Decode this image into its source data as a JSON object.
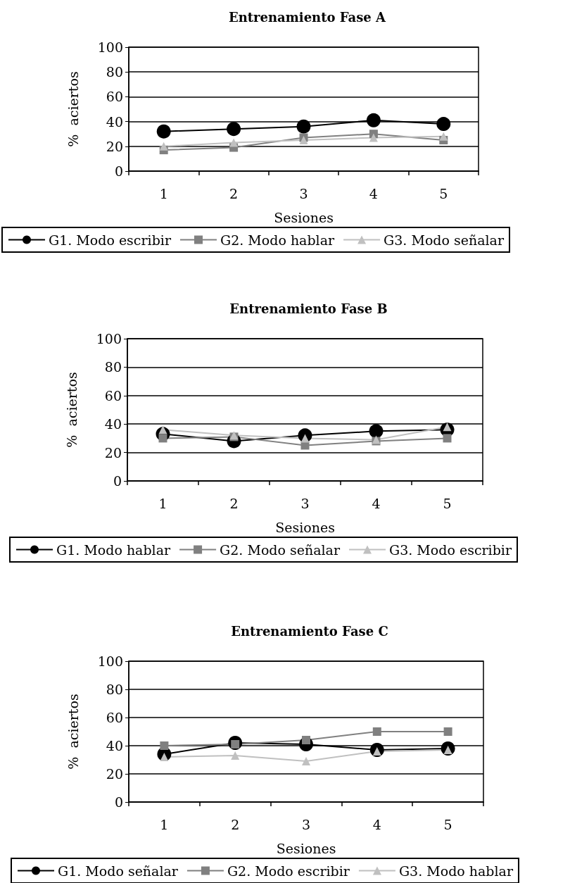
{
  "chart_data": [
    {
      "type": "line",
      "title": "Entrenamiento Fase A",
      "xlabel": "Sesiones",
      "ylabel": "%  aciertos",
      "categories": [
        "1",
        "2",
        "3",
        "4",
        "5"
      ],
      "ylim": [
        0,
        100
      ],
      "yticks": [
        0,
        20,
        40,
        60,
        80,
        100
      ],
      "grid": "y",
      "legend": "bottom",
      "line_style": "solid",
      "series": [
        {
          "name": "G1. Modo escribir",
          "color": "#000000",
          "marker": "circle",
          "values": [
            32,
            34,
            36,
            41,
            38
          ]
        },
        {
          "name": "G2. Modo hablar",
          "color": "#808080",
          "marker": "square",
          "values": [
            17,
            19,
            27,
            30,
            25
          ]
        },
        {
          "name": "G3. Modo señalar",
          "color": "#c0c0c0",
          "marker": "triangle",
          "values": [
            20,
            23,
            25,
            27,
            28
          ]
        }
      ]
    },
    {
      "type": "line",
      "title": "Entrenamiento Fase B",
      "xlabel": "Sesiones",
      "ylabel": "%  aciertos",
      "categories": [
        "1",
        "2",
        "3",
        "4",
        "5"
      ],
      "ylim": [
        0,
        100
      ],
      "yticks": [
        0,
        20,
        40,
        60,
        80,
        100
      ],
      "grid": "y",
      "legend": "bottom",
      "line_style": "solid",
      "series": [
        {
          "name": "G1. Modo hablar",
          "color": "#000000",
          "marker": "circle",
          "values": [
            33,
            28,
            32,
            35,
            36
          ]
        },
        {
          "name": "G2. Modo señalar",
          "color": "#808080",
          "marker": "square",
          "values": [
            30,
            31,
            25,
            28,
            30
          ]
        },
        {
          "name": "G3. Modo escribir",
          "color": "#c0c0c0",
          "marker": "triangle",
          "values": [
            36,
            32,
            30,
            29,
            38
          ]
        }
      ]
    },
    {
      "type": "line",
      "title": "Entrenamiento Fase C",
      "xlabel": "Sesiones",
      "ylabel": "%  aciertos",
      "categories": [
        "1",
        "2",
        "3",
        "4",
        "5"
      ],
      "ylim": [
        0,
        100
      ],
      "yticks": [
        0,
        20,
        40,
        60,
        80,
        100
      ],
      "grid": "y",
      "legend": "bottom",
      "line_style": "solid",
      "series": [
        {
          "name": "G1. Modo señalar",
          "color": "#000000",
          "marker": "circle",
          "values": [
            34,
            42,
            41,
            37,
            38
          ]
        },
        {
          "name": "G2. Modo escribir",
          "color": "#808080",
          "marker": "square",
          "values": [
            40,
            41,
            44,
            50,
            50
          ]
        },
        {
          "name": "G3. Modo hablar",
          "color": "#c0c0c0",
          "marker": "triangle",
          "values": [
            32,
            33,
            29,
            36,
            37
          ]
        }
      ]
    }
  ]
}
